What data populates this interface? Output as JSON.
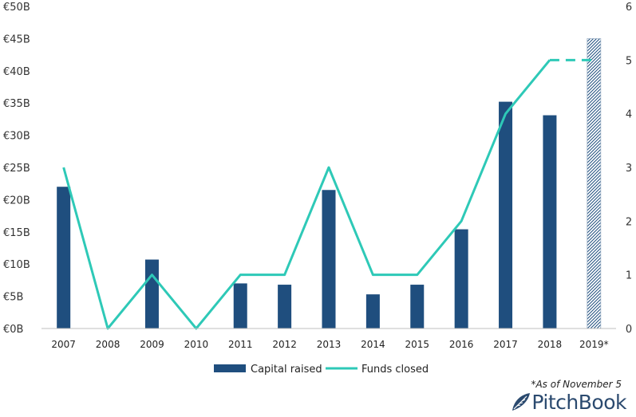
{
  "chart_data": {
    "type": "bar",
    "categories": [
      "2007",
      "2008",
      "2009",
      "2010",
      "2011",
      "2012",
      "2013",
      "2014",
      "2015",
      "2016",
      "2017",
      "2018",
      "2019*"
    ],
    "series": [
      {
        "name": "Capital raised",
        "type": "bar",
        "axis": "left",
        "color": "#1f4e7e",
        "values": [
          22.0,
          0,
          10.7,
          0,
          7.0,
          6.8,
          21.5,
          5.3,
          6.8,
          15.4,
          35.2,
          33.1,
          45.0
        ],
        "hatched_categories": [
          "2019*"
        ]
      },
      {
        "name": "Funds closed",
        "type": "line",
        "axis": "right",
        "color": "#2ec9b7",
        "values": [
          3,
          0,
          1,
          0,
          1,
          1,
          3,
          1,
          1,
          2,
          4,
          5,
          5
        ],
        "dashed_from_category": "2018"
      }
    ],
    "y_left": {
      "min": 0,
      "max": 50,
      "step": 5,
      "tick_labels": [
        "€0B",
        "€5B",
        "€10B",
        "€15B",
        "€20B",
        "€25B",
        "€30B",
        "€35B",
        "€40B",
        "€45B",
        "€50B"
      ]
    },
    "y_right": {
      "min": 0,
      "max": 6,
      "step": 1,
      "tick_labels": [
        "0",
        "1",
        "2",
        "3",
        "4",
        "5",
        "6"
      ]
    },
    "legend": {
      "placement": "bottom-center",
      "items": [
        {
          "label": "Capital raised",
          "kind": "bar"
        },
        {
          "label": "Funds closed",
          "kind": "line"
        }
      ]
    },
    "grid": false
  },
  "footnote": "*As of November 5",
  "brand": {
    "name": "PitchBook",
    "color": "#2b4a6f"
  }
}
